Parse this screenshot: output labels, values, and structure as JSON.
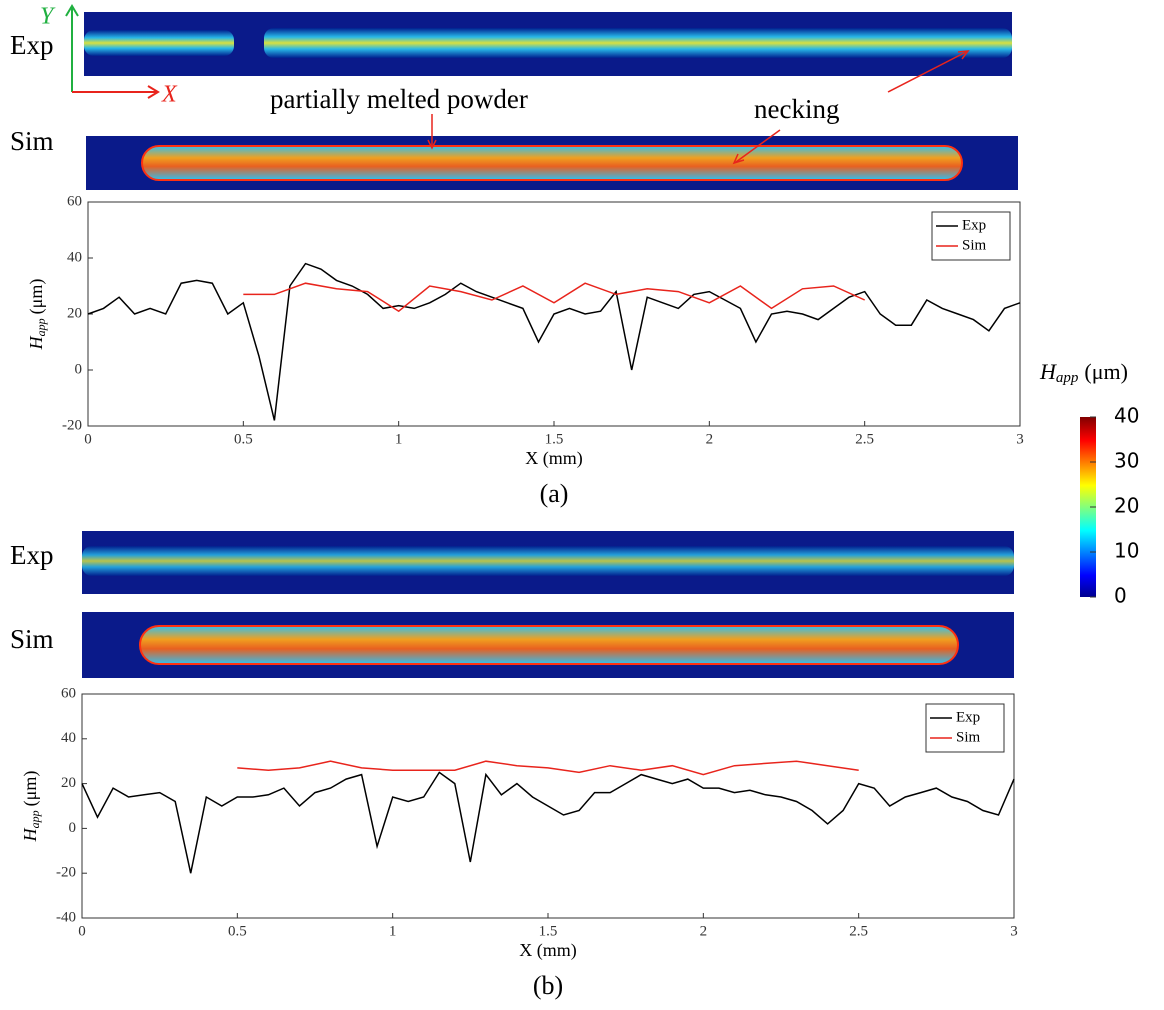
{
  "chart_data": [
    {
      "type": "line",
      "xlabel": "X (mm)",
      "ylabel": "H",
      "ylabel_sub": "app",
      "ylabel_unit": "(μm)",
      "caption": "(a)",
      "xlim": [
        0,
        3
      ],
      "ylim": [
        -20,
        60
      ],
      "xticks": [
        0,
        0.5,
        1,
        1.5,
        2,
        2.5,
        3
      ],
      "yticks": [
        -20,
        0,
        20,
        40,
        60
      ],
      "legend": "upper right",
      "series": [
        {
          "name": "Exp",
          "color": "#000000",
          "x": [
            0,
            0.05,
            0.1,
            0.15,
            0.2,
            0.25,
            0.3,
            0.35,
            0.4,
            0.45,
            0.5,
            0.55,
            0.6,
            0.65,
            0.7,
            0.75,
            0.8,
            0.85,
            0.9,
            0.95,
            1,
            1.05,
            1.1,
            1.15,
            1.2,
            1.25,
            1.3,
            1.35,
            1.4,
            1.45,
            1.5,
            1.55,
            1.6,
            1.65,
            1.7,
            1.75,
            1.8,
            1.85,
            1.9,
            1.95,
            2,
            2.05,
            2.1,
            2.15,
            2.2,
            2.25,
            2.3,
            2.35,
            2.4,
            2.45,
            2.5,
            2.55,
            2.6,
            2.65,
            2.7,
            2.75,
            2.8,
            2.85,
            2.9,
            2.95,
            3
          ],
          "values": [
            20,
            22,
            26,
            20,
            22,
            20,
            31,
            32,
            31,
            20,
            24,
            5,
            -18,
            30,
            38,
            36,
            32,
            30,
            27,
            22,
            23,
            22,
            24,
            27,
            31,
            28,
            26,
            24,
            22,
            10,
            20,
            22,
            20,
            21,
            28,
            0,
            26,
            24,
            22,
            27,
            28,
            25,
            22,
            10,
            20,
            21,
            20,
            18,
            22,
            26,
            28,
            20,
            16,
            16,
            25,
            22,
            20,
            18,
            14,
            22,
            24
          ]
        },
        {
          "name": "Sim",
          "color": "#e8241c",
          "x": [
            0.5,
            0.6,
            0.7,
            0.8,
            0.9,
            1,
            1.1,
            1.2,
            1.3,
            1.4,
            1.5,
            1.6,
            1.7,
            1.8,
            1.9,
            2,
            2.1,
            2.2,
            2.3,
            2.4,
            2.5
          ],
          "values": [
            27,
            27,
            31,
            29,
            28,
            21,
            30,
            28,
            25,
            30,
            24,
            31,
            27,
            29,
            28,
            24,
            30,
            22,
            29,
            30,
            25
          ]
        }
      ]
    },
    {
      "type": "line",
      "xlabel": "X (mm)",
      "ylabel": "H",
      "ylabel_sub": "app",
      "ylabel_unit": "(μm)",
      "caption": "(b)",
      "xlim": [
        0,
        3
      ],
      "ylim": [
        -40,
        60
      ],
      "xticks": [
        0,
        0.5,
        1,
        1.5,
        2,
        2.5,
        3
      ],
      "yticks": [
        -40,
        -20,
        0,
        20,
        40,
        60
      ],
      "legend": "upper right",
      "series": [
        {
          "name": "Exp",
          "color": "#000000",
          "x": [
            0,
            0.05,
            0.1,
            0.15,
            0.2,
            0.25,
            0.3,
            0.35,
            0.4,
            0.45,
            0.5,
            0.55,
            0.6,
            0.65,
            0.7,
            0.75,
            0.8,
            0.85,
            0.9,
            0.95,
            1,
            1.05,
            1.1,
            1.15,
            1.2,
            1.25,
            1.3,
            1.35,
            1.4,
            1.45,
            1.5,
            1.55,
            1.6,
            1.65,
            1.7,
            1.75,
            1.8,
            1.85,
            1.9,
            1.95,
            2,
            2.05,
            2.1,
            2.15,
            2.2,
            2.25,
            2.3,
            2.35,
            2.4,
            2.45,
            2.5,
            2.55,
            2.6,
            2.65,
            2.7,
            2.75,
            2.8,
            2.85,
            2.9,
            2.95,
            3
          ],
          "values": [
            20,
            5,
            18,
            14,
            15,
            16,
            12,
            -20,
            14,
            10,
            14,
            14,
            15,
            18,
            10,
            16,
            18,
            22,
            24,
            -8,
            14,
            12,
            14,
            25,
            20,
            -15,
            24,
            15,
            20,
            14,
            10,
            6,
            8,
            16,
            16,
            20,
            24,
            22,
            20,
            22,
            18,
            18,
            16,
            17,
            15,
            14,
            12,
            8,
            2,
            8,
            20,
            18,
            10,
            14,
            16,
            18,
            14,
            12,
            8,
            6,
            22
          ]
        },
        {
          "name": "Sim",
          "color": "#e8241c",
          "x": [
            0.5,
            0.6,
            0.7,
            0.8,
            0.9,
            1,
            1.1,
            1.2,
            1.3,
            1.4,
            1.5,
            1.6,
            1.7,
            1.8,
            1.9,
            2,
            2.1,
            2.2,
            2.3,
            2.4,
            2.5
          ],
          "values": [
            27,
            26,
            27,
            30,
            27,
            26,
            26,
            26,
            30,
            28,
            27,
            25,
            28,
            26,
            28,
            24,
            28,
            29,
            30,
            28,
            26
          ]
        }
      ]
    }
  ],
  "strips": {
    "exp": "Exp",
    "sim": "Sim",
    "axis_y": "Y",
    "axis_x": "X"
  },
  "annotations": [
    "partially melted powder",
    "necking"
  ],
  "colorbar": {
    "label": "H",
    "label_sub": "app",
    "label_unit": "(μm)",
    "lim": [
      0,
      40
    ],
    "ticks": [
      0,
      10,
      20,
      30,
      40
    ]
  }
}
